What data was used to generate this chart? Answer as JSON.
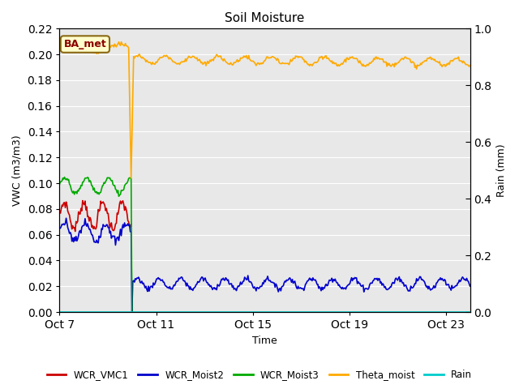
{
  "title": "Soil Moisture",
  "ylabel_left": "VWC (m3/m3)",
  "ylabel_right": "Rain (mm)",
  "xlabel": "Time",
  "ylim_left": [
    0.0,
    0.22
  ],
  "ylim_right": [
    0.0,
    1.0
  ],
  "yticks_left": [
    0.0,
    0.02,
    0.04,
    0.06,
    0.08,
    0.1,
    0.12,
    0.14,
    0.16,
    0.18,
    0.2,
    0.22
  ],
  "yticks_right": [
    0.0,
    0.2,
    0.4,
    0.6,
    0.8,
    1.0
  ],
  "background_color": "#e8e8e8",
  "annotation_text": "BA_met",
  "annotation_color": "#8B0000",
  "annotation_bg": "#ffffcc",
  "legend_entries": [
    "WCR_VMC1",
    "WCR_Moist2",
    "WCR_Moist3",
    "Theta_moist",
    "Rain"
  ],
  "line_colors": {
    "WCR_VMC1": "#cc0000",
    "WCR_Moist2": "#0000cc",
    "WCR_Moist3": "#00aa00",
    "Theta_moist": "#ffaa00",
    "Rain": "#00cccc"
  },
  "xtick_positions": [
    0,
    4,
    8,
    12,
    16
  ],
  "xtick_labels": [
    "Oct 7",
    "Oct 11",
    "Oct 15",
    "Oct 19",
    "Oct 23"
  ],
  "xlim": [
    0,
    17
  ],
  "breakpoint_day": 3.0,
  "total_days": 17,
  "n_points": 500
}
